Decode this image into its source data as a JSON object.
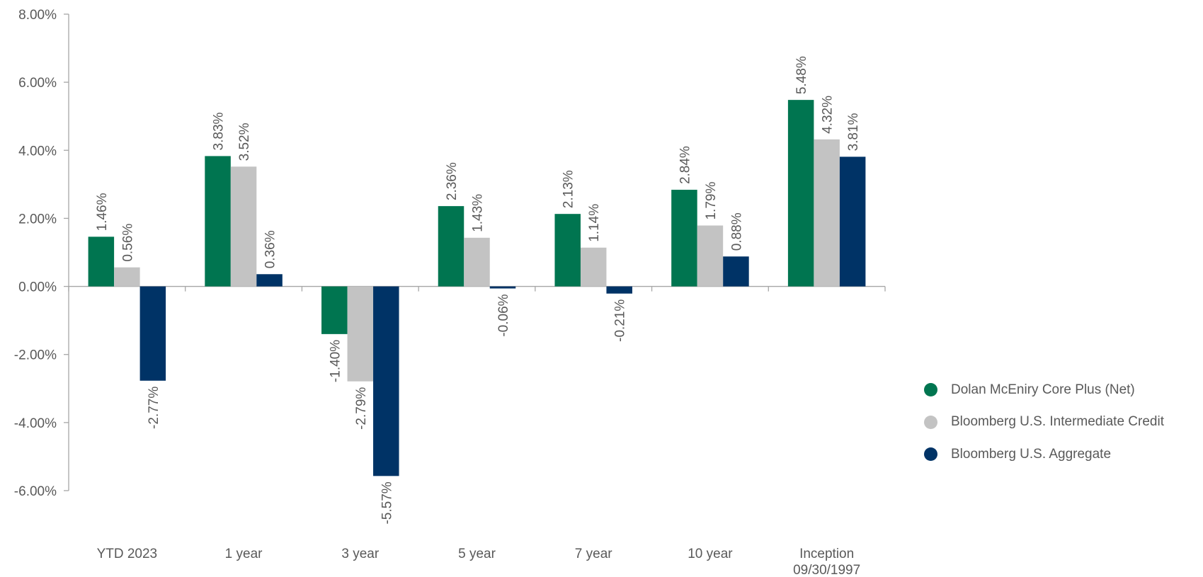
{
  "chart_data": {
    "type": "bar",
    "title": "",
    "xlabel": "",
    "ylabel": "",
    "ylim": [
      -6,
      8
    ],
    "y_ticks": [
      8,
      6,
      4,
      2,
      0,
      -2,
      -4,
      -6
    ],
    "y_tick_labels": [
      "8.00%",
      "6.00%",
      "4.00%",
      "2.00%",
      "0.00%",
      "-2.00%",
      "-4.00%",
      "-6.00%"
    ],
    "categories": [
      [
        "YTD 2023"
      ],
      [
        "1 year"
      ],
      [
        "3 year"
      ],
      [
        "5 year"
      ],
      [
        "7 year"
      ],
      [
        "10 year"
      ],
      [
        "Inception",
        "09/30/1997"
      ]
    ],
    "series": [
      {
        "name": "Dolan McEniry Core Plus (Net)",
        "color": "#007550",
        "values": [
          1.46,
          3.83,
          -1.4,
          2.36,
          2.13,
          2.84,
          5.48
        ],
        "labels": [
          "1.46%",
          "3.83%",
          "-1.40%",
          "2.36%",
          "2.13%",
          "2.84%",
          "5.48%"
        ]
      },
      {
        "name": "Bloomberg U.S. Intermediate Credit",
        "color": "#c3c3c3",
        "values": [
          0.56,
          3.52,
          -2.79,
          1.43,
          1.14,
          1.79,
          4.32
        ],
        "labels": [
          "0.56%",
          "3.52%",
          "-2.79%",
          "1.43%",
          "1.14%",
          "1.79%",
          "4.32%"
        ]
      },
      {
        "name": "Bloomberg U.S. Aggregate",
        "color": "#003366",
        "values": [
          -2.77,
          0.36,
          -5.57,
          -0.06,
          -0.21,
          0.88,
          3.81
        ],
        "labels": [
          "-2.77%",
          "0.36%",
          "-5.57%",
          "-0.06%",
          "-0.21%",
          "0.88%",
          "3.81%"
        ]
      }
    ],
    "legend": {
      "position": "right"
    },
    "axis_color": "#a6a6a6",
    "text_color": "#595959",
    "grid": false
  }
}
